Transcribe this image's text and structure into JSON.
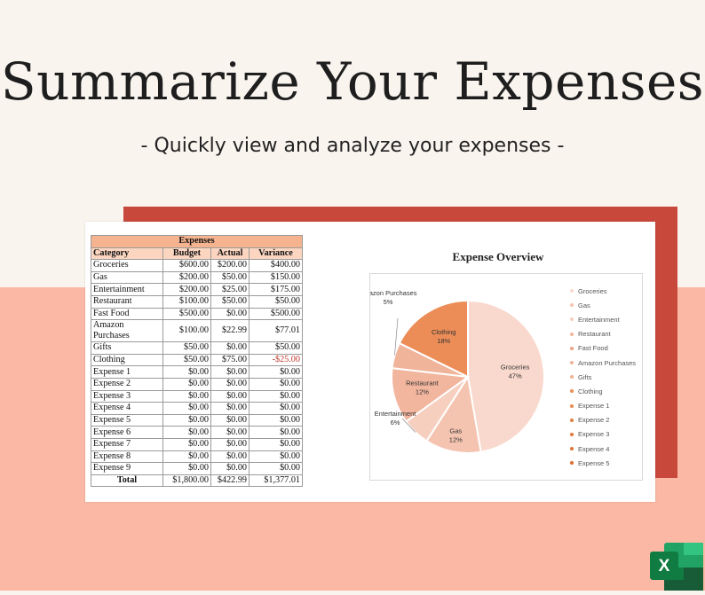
{
  "headline": "Summarize Your Expenses",
  "subheadline": "- Quickly view and analyze your expenses -",
  "table": {
    "title": "Expenses",
    "headers": [
      "Category",
      "Budget",
      "Actual",
      "Variance"
    ],
    "rows": [
      [
        "Groceries",
        "$600.00",
        "$200.00",
        "$400.00"
      ],
      [
        "Gas",
        "$200.00",
        "$50.00",
        "$150.00"
      ],
      [
        "Entertainment",
        "$200.00",
        "$25.00",
        "$175.00"
      ],
      [
        "Restaurant",
        "$100.00",
        "$50.00",
        "$50.00"
      ],
      [
        "Fast Food",
        "$500.00",
        "$0.00",
        "$500.00"
      ],
      [
        "Amazon Purchases",
        "$100.00",
        "$22.99",
        "$77.01"
      ],
      [
        "Gifts",
        "$50.00",
        "$0.00",
        "$50.00"
      ],
      [
        "Clothing",
        "$50.00",
        "$75.00",
        "-$25.00"
      ],
      [
        "Expense 1",
        "$0.00",
        "$0.00",
        "$0.00"
      ],
      [
        "Expense 2",
        "$0.00",
        "$0.00",
        "$0.00"
      ],
      [
        "Expense 3",
        "$0.00",
        "$0.00",
        "$0.00"
      ],
      [
        "Expense 4",
        "$0.00",
        "$0.00",
        "$0.00"
      ],
      [
        "Expense 5",
        "$0.00",
        "$0.00",
        "$0.00"
      ],
      [
        "Expense 6",
        "$0.00",
        "$0.00",
        "$0.00"
      ],
      [
        "Expense 7",
        "$0.00",
        "$0.00",
        "$0.00"
      ],
      [
        "Expense 8",
        "$0.00",
        "$0.00",
        "$0.00"
      ],
      [
        "Expense 9",
        "$0.00",
        "$0.00",
        "$0.00"
      ]
    ],
    "total": [
      "Total",
      "$1,800.00",
      "$422.99",
      "$1,377.01"
    ],
    "negative_color": "#c0392b"
  },
  "chart_data": {
    "type": "pie",
    "title": "Expense Overview",
    "categories": [
      "Groceries",
      "Gas",
      "Entertainment",
      "Restaurant",
      "Fast Food",
      "Amazon Purchases",
      "Gifts",
      "Clothing",
      "Expense 1",
      "Expense 2",
      "Expense 3",
      "Expense 4",
      "Expense 5"
    ],
    "values": [
      200,
      50,
      25,
      50,
      0,
      22.99,
      0,
      75,
      0,
      0,
      0,
      0,
      0
    ],
    "data_labels": [
      {
        "category": "Groceries",
        "name": "Groceries",
        "pct": "47%"
      },
      {
        "category": "Gas",
        "name": "Gas",
        "pct": "12%"
      },
      {
        "category": "Entertainment",
        "name": "Entertainment",
        "pct": "6%"
      },
      {
        "category": "Restaurant",
        "name": "Restaurant",
        "pct": "12%"
      },
      {
        "category": "Amazon Purchases",
        "name": "Amazon Purchases",
        "pct": "5%"
      },
      {
        "category": "Clothing",
        "name": "Clothing",
        "pct": "18%"
      }
    ],
    "colors": [
      "#f9d9cd",
      "#f5c4b1",
      "#f6cfbf",
      "#f2b59e",
      "#eea485",
      "#f0b49b",
      "#efb295",
      "#ec8d57",
      "#e98a4f",
      "#e57f42",
      "#e2783b",
      "#df7236",
      "#db6c30"
    ],
    "legend_position": "right"
  },
  "icons": {
    "app": "excel-logo-icon",
    "app_letter": "X"
  }
}
